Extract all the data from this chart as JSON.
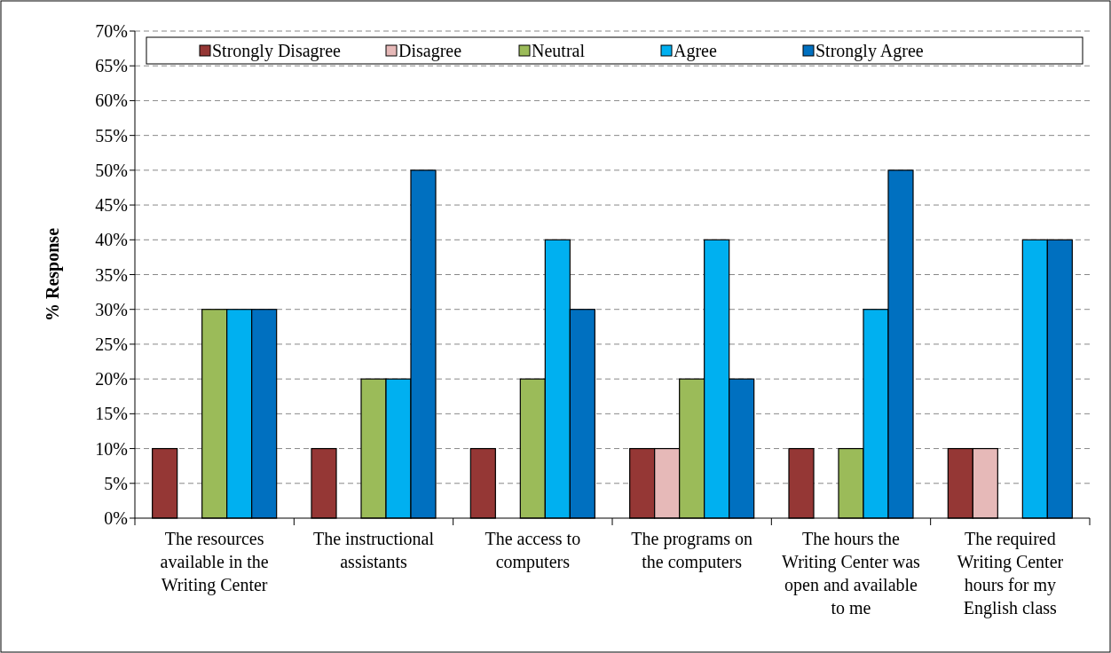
{
  "chart_data": {
    "type": "bar",
    "ylabel": "% Response",
    "categories": [
      "The resources available in the Writing Center",
      "The instructional assistants",
      "The access to computers",
      "The programs on the computers",
      "The hours the Writing Center was open and available to me",
      "The required Writing Center hours for my English class"
    ],
    "series": [
      {
        "name": "Strongly Disagree",
        "color": "#953735",
        "values": [
          10,
          10,
          10,
          10,
          10,
          10
        ]
      },
      {
        "name": "Disagree",
        "color": "#e6b9b8",
        "values": [
          0,
          0,
          0,
          10,
          0,
          10
        ]
      },
      {
        "name": "Neutral",
        "color": "#9bbb59",
        "values": [
          30,
          20,
          20,
          20,
          10,
          0
        ]
      },
      {
        "name": "Agree",
        "color": "#00b0f0",
        "values": [
          30,
          20,
          40,
          40,
          30,
          40
        ]
      },
      {
        "name": "Strongly Agree",
        "color": "#0070c0",
        "values": [
          30,
          50,
          30,
          20,
          50,
          40
        ]
      }
    ],
    "ylim": [
      0,
      70
    ],
    "yticks": [
      {
        "value": 0,
        "label": "0%"
      },
      {
        "value": 5,
        "label": "5%"
      },
      {
        "value": 10,
        "label": "10%"
      },
      {
        "value": 15,
        "label": "15%"
      },
      {
        "value": 20,
        "label": "20%"
      },
      {
        "value": 25,
        "label": "25%"
      },
      {
        "value": 30,
        "label": "30%"
      },
      {
        "value": 35,
        "label": "35%"
      },
      {
        "value": 40,
        "label": "40%"
      },
      {
        "value": 45,
        "label": "45%"
      },
      {
        "value": 50,
        "label": "50%"
      },
      {
        "value": 55,
        "label": "55%"
      },
      {
        "value": 60,
        "label": "60%"
      },
      {
        "value": 65,
        "label": "65%"
      },
      {
        "value": 70,
        "label": "70%"
      }
    ],
    "grid": "y",
    "legend": "top"
  }
}
